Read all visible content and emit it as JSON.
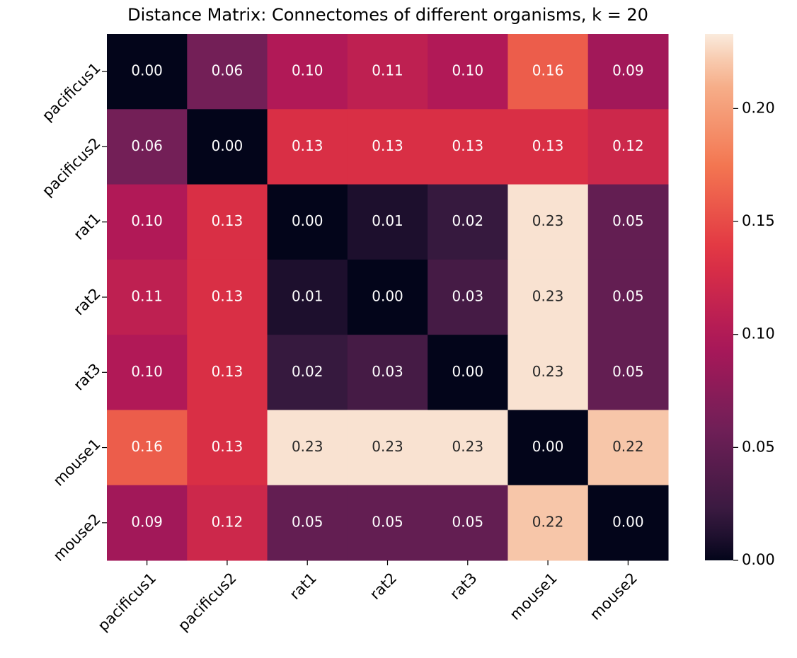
{
  "chart_data": {
    "type": "heatmap",
    "title": "Distance Matrix: Connectomes of different organisms, k = 20",
    "categories": [
      "pacificus1",
      "pacificus2",
      "rat1",
      "rat2",
      "rat3",
      "mouse1",
      "mouse2"
    ],
    "values": [
      [
        0,
        0.06,
        0.1,
        0.11,
        0.1,
        0.16,
        0.09
      ],
      [
        0.06,
        0,
        0.13,
        0.13,
        0.13,
        0.13,
        0.12
      ],
      [
        0.1,
        0.13,
        0,
        0.01,
        0.02,
        0.23,
        0.05
      ],
      [
        0.11,
        0.13,
        0.01,
        0,
        0.03,
        0.23,
        0.05
      ],
      [
        0.1,
        0.13,
        0.02,
        0.03,
        0,
        0.23,
        0.05
      ],
      [
        0.16,
        0.13,
        0.23,
        0.23,
        0.23,
        0,
        0.22
      ],
      [
        0.09,
        0.12,
        0.05,
        0.05,
        0.05,
        0.22,
        0
      ]
    ],
    "value_labels": [
      [
        "0.00",
        "0.06",
        "0.10",
        "0.11",
        "0.10",
        "0.16",
        "0.09"
      ],
      [
        "0.06",
        "0.00",
        "0.13",
        "0.13",
        "0.13",
        "0.13",
        "0.12"
      ],
      [
        "0.10",
        "0.13",
        "0.00",
        "0.01",
        "0.02",
        "0.23",
        "0.05"
      ],
      [
        "0.11",
        "0.13",
        "0.01",
        "0.00",
        "0.03",
        "0.23",
        "0.05"
      ],
      [
        "0.10",
        "0.13",
        "0.02",
        "0.03",
        "0.00",
        "0.23",
        "0.05"
      ],
      [
        "0.16",
        "0.13",
        "0.23",
        "0.23",
        "0.23",
        "0.00",
        "0.22"
      ],
      [
        "0.09",
        "0.12",
        "0.05",
        "0.05",
        "0.05",
        "0.22",
        "0.00"
      ]
    ],
    "colormap": "rocket",
    "zlim": [
      0,
      0.233
    ],
    "zticks": [
      {
        "value": 0,
        "label": "0.00"
      },
      {
        "value": 0.05,
        "label": "0.05"
      },
      {
        "value": 0.1,
        "label": "0.10"
      },
      {
        "value": 0.15,
        "label": "0.15"
      },
      {
        "value": 0.2,
        "label": "0.20"
      }
    ]
  }
}
